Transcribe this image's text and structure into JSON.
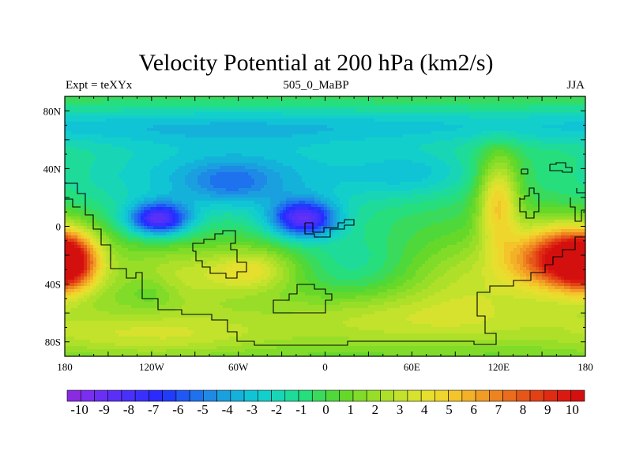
{
  "header": {
    "title": "Velocity Potential at 200 hPa (km2/s)",
    "left_string": "Expt = teXYx",
    "center_string": "505_0_MaBP",
    "right_string": "JJA"
  },
  "chart_data": {
    "type": "heatmap",
    "title": "Velocity Potential at 200 hPa (km2/s)",
    "projection": "cylindrical-equidistant",
    "xlim": [
      -180,
      180
    ],
    "ylim": [
      -90,
      90
    ],
    "x_ticks": [
      {
        "value": -180,
        "label": "180"
      },
      {
        "value": -120,
        "label": "120W"
      },
      {
        "value": -60,
        "label": "60W"
      },
      {
        "value": 0,
        "label": "0"
      },
      {
        "value": 60,
        "label": "60E"
      },
      {
        "value": 120,
        "label": "120E"
      },
      {
        "value": 180,
        "label": "180"
      }
    ],
    "y_ticks": [
      {
        "value": 80,
        "label": "80N"
      },
      {
        "value": 40,
        "label": "40N"
      },
      {
        "value": 0,
        "label": "0"
      },
      {
        "value": -40,
        "label": "40S"
      },
      {
        "value": -80,
        "label": "80S"
      }
    ],
    "colorbar": {
      "orientation": "horizontal",
      "levels": [
        -10,
        -9.5,
        -9,
        -8.5,
        -8,
        -7.5,
        -7,
        -6.5,
        -6,
        -5.5,
        -5,
        -4.5,
        -4,
        -3.5,
        -3,
        -2.5,
        -2,
        -1.5,
        -1,
        -0.5,
        0,
        0.5,
        1,
        1.5,
        2,
        2.5,
        3,
        3.5,
        4,
        4.5,
        5,
        5.5,
        6,
        6.5,
        7,
        7.5,
        8,
        8.5,
        9,
        9.5,
        10
      ],
      "labels": [
        "-10",
        "-9",
        "-8",
        "-7",
        "-6",
        "-5",
        "-4",
        "-3",
        "-2",
        "-1",
        "0",
        "1",
        "2",
        "3",
        "4",
        "5",
        "6",
        "7",
        "8",
        "9",
        "10"
      ],
      "colors": [
        "#8A2BE2",
        "#7B2DF0",
        "#6A2FF5",
        "#5A30F8",
        "#4A30FB",
        "#3A30FD",
        "#2B2BFF",
        "#1F3CFB",
        "#1F58F5",
        "#1E72EE",
        "#1E8AE6",
        "#1AA0DF",
        "#14B2DA",
        "#10C4D5",
        "#12CFCB",
        "#18D6B5",
        "#1EDB9A",
        "#26DE7C",
        "#3ADB5C",
        "#4FD83A",
        "#66D82A",
        "#80DC28",
        "#98DE28",
        "#AEE02A",
        "#C2E22C",
        "#D6E22E",
        "#E6DF2E",
        "#EFD62C",
        "#F3C52A",
        "#F3B128",
        "#F19C24",
        "#EE8420",
        "#EA6C1C",
        "#E65618",
        "#E24015",
        "#DE2B12",
        "#DA1A10",
        "#D4100E"
      ]
    },
    "field_features": [
      {
        "kind": "minimum",
        "lon": -115,
        "lat": 5,
        "value": -10
      },
      {
        "kind": "minimum",
        "lon": -15,
        "lat": 5,
        "value": -10
      },
      {
        "kind": "maximum",
        "lon": 160,
        "lat": -20,
        "value": 9
      },
      {
        "kind": "maximum",
        "lon": -175,
        "lat": -25,
        "value": 8
      },
      {
        "kind": "maximum",
        "lon": 120,
        "lat": 20,
        "value": 6
      },
      {
        "kind": "maximum",
        "lon": -50,
        "lat": -30,
        "value": 5
      }
    ]
  }
}
